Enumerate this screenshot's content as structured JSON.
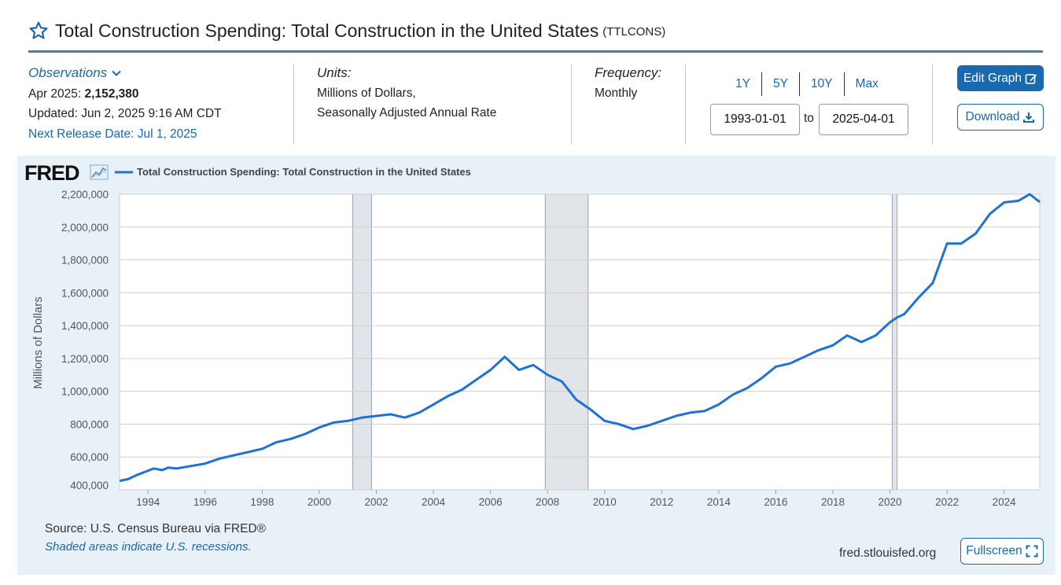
{
  "header": {
    "title": "Total Construction Spending: Total Construction in the United States",
    "series_id": "(TTLCONS)"
  },
  "observations": {
    "label": "Observations",
    "latest_date": "Apr 2025:",
    "latest_value": "2,152,380",
    "updated": "Updated: Jun 2, 2025 9:16 AM CDT",
    "next_release": "Next Release Date: Jul 1, 2025"
  },
  "units": {
    "label": "Units:",
    "line1": "Millions of Dollars,",
    "line2": "Seasonally Adjusted Annual Rate"
  },
  "frequency": {
    "label": "Frequency:",
    "value": "Monthly"
  },
  "range": {
    "buttons": [
      "1Y",
      "5Y",
      "10Y",
      "Max"
    ],
    "start": "1993-01-01",
    "to_label": "to",
    "end": "2025-04-01"
  },
  "actions": {
    "edit_graph": "Edit Graph",
    "download": "Download",
    "fullscreen": "Fullscreen"
  },
  "footer": {
    "source": "Source: U.S. Census Bureau via FRED®",
    "shaded_note": "Shaded areas indicate U.S. recessions.",
    "url": "fred.stlouisfed.org"
  },
  "brand": {
    "logo_text": "FRED"
  },
  "colors": {
    "line": "#1c72d6",
    "accent": "#1a68ad",
    "panel": "#e9f1f8",
    "recession": "#e1e5ea"
  },
  "chart_data": {
    "type": "line",
    "legend": "Total Construction Spending: Total Construction in the United States",
    "ylabel": "Millions of Dollars",
    "xlabel": "",
    "xlim": [
      1993.0,
      2025.25
    ],
    "ylim": [
      400000,
      2200000
    ],
    "yticks": [
      400000,
      600000,
      800000,
      1000000,
      1200000,
      1400000,
      1600000,
      1800000,
      2000000,
      2200000
    ],
    "ytick_labels": [
      "400,000",
      "600,000",
      "800,000",
      "1,000,000",
      "1,200,000",
      "1,400,000",
      "1,600,000",
      "1,800,000",
      "2,000,000",
      "2,200,000"
    ],
    "xticks": [
      1994,
      1996,
      1998,
      2000,
      2002,
      2004,
      2006,
      2008,
      2010,
      2012,
      2014,
      2016,
      2018,
      2020,
      2022,
      2024
    ],
    "xtick_labels": [
      "1994",
      "1996",
      "1998",
      "2000",
      "2002",
      "2004",
      "2006",
      "2008",
      "2010",
      "2012",
      "2014",
      "2016",
      "2018",
      "2020",
      "2022",
      "2024"
    ],
    "grid": true,
    "recessions": [
      [
        2001.17,
        2001.83
      ],
      [
        2007.92,
        2009.42
      ],
      [
        2020.08,
        2020.25
      ]
    ],
    "series": [
      {
        "name": "Total Construction Spending: Total Construction in the United States",
        "x": [
          1993.0,
          1993.3,
          1993.6,
          1993.9,
          1994.2,
          1994.5,
          1994.7,
          1995.0,
          1995.5,
          1996.0,
          1996.5,
          1997.0,
          1997.5,
          1998.0,
          1998.5,
          1999.0,
          1999.5,
          2000.0,
          2000.5,
          2001.0,
          2001.5,
          2002.0,
          2002.5,
          2003.0,
          2003.5,
          2004.0,
          2004.5,
          2005.0,
          2005.5,
          2006.0,
          2006.5,
          2007.0,
          2007.5,
          2008.0,
          2008.5,
          2009.0,
          2009.5,
          2010.0,
          2010.5,
          2011.0,
          2011.5,
          2012.0,
          2012.5,
          2013.0,
          2013.5,
          2014.0,
          2014.5,
          2015.0,
          2015.5,
          2016.0,
          2016.5,
          2017.0,
          2017.5,
          2018.0,
          2018.5,
          2019.0,
          2019.5,
          2020.0,
          2020.25,
          2020.5,
          2021.0,
          2021.5,
          2022.0,
          2022.5,
          2023.0,
          2023.5,
          2024.0,
          2024.5,
          2024.9,
          2025.25
        ],
        "y": [
          455000,
          465000,
          490000,
          510000,
          530000,
          520000,
          535000,
          530000,
          545000,
          560000,
          590000,
          610000,
          630000,
          650000,
          690000,
          710000,
          740000,
          780000,
          810000,
          820000,
          840000,
          850000,
          860000,
          840000,
          870000,
          920000,
          970000,
          1010000,
          1070000,
          1130000,
          1210000,
          1130000,
          1160000,
          1100000,
          1060000,
          950000,
          890000,
          820000,
          800000,
          770000,
          790000,
          820000,
          850000,
          870000,
          880000,
          920000,
          980000,
          1020000,
          1080000,
          1150000,
          1170000,
          1210000,
          1250000,
          1280000,
          1340000,
          1300000,
          1340000,
          1420000,
          1450000,
          1470000,
          1570000,
          1660000,
          1900000,
          1900000,
          1960000,
          2080000,
          2150000,
          2160000,
          2200000,
          2152380
        ]
      }
    ]
  }
}
